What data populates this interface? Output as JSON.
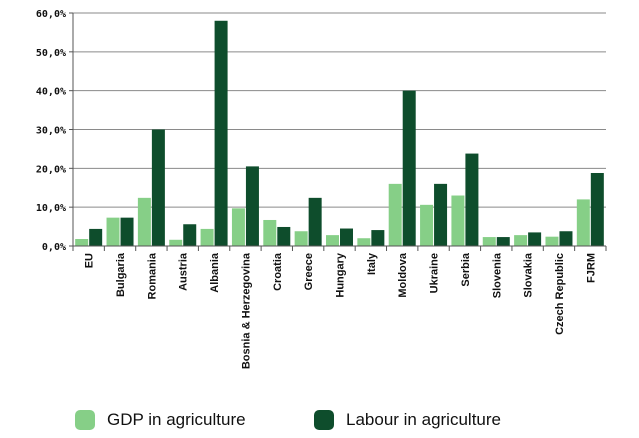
{
  "chart_data": {
    "type": "bar",
    "categories": [
      "EU",
      "Bulgaria",
      "Romania",
      "Austria",
      "Albania",
      "Bosnia & Herzegovina",
      "Croatia",
      "Greece",
      "Hungary",
      "Italy",
      "Moldova",
      "Ukraine",
      "Serbia",
      "Slovenia",
      "Slovakia",
      "Czech Republic",
      "FJRM"
    ],
    "series": [
      {
        "name": "GDP in agriculture",
        "color": "#86cf87",
        "values": [
          1.8,
          7.3,
          12.4,
          1.6,
          4.4,
          9.7,
          6.7,
          3.8,
          2.8,
          2.0,
          16.0,
          10.6,
          13.0,
          2.3,
          2.8,
          2.4,
          12.0
        ]
      },
      {
        "name": "Labour in agriculture",
        "color": "#0e4d2c",
        "values": [
          4.4,
          7.3,
          30.0,
          5.6,
          58.0,
          20.5,
          4.9,
          12.4,
          4.5,
          4.1,
          40.0,
          16.0,
          23.8,
          2.3,
          3.5,
          3.8,
          18.8
        ]
      }
    ],
    "y_ticks": [
      "0,0%",
      "10,0%",
      "20,0%",
      "30,0%",
      "40,0%",
      "50,0%",
      "60,0%"
    ],
    "ylim": [
      0,
      60
    ],
    "grid": true,
    "legend_position": "bottom"
  }
}
